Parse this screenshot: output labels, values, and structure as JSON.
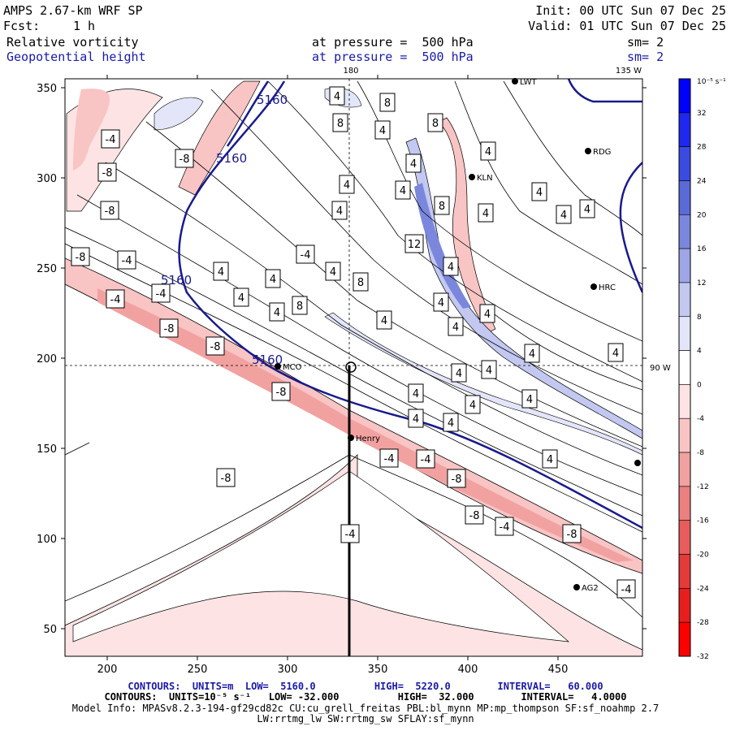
{
  "header": {
    "model_title": "AMPS 2.67-km WRF SP",
    "fcst_label": "Fcst:",
    "fcst_value": "1 h",
    "init": "Init: 00 UTC Sun 07 Dec 25",
    "valid": "Valid: 01 UTC Sun 07 Dec 25",
    "field1_name": "Relative vorticity",
    "field1_level": "at pressure =  500 hPa",
    "field1_sm": "sm= 2",
    "field2_name": "Geopotential height",
    "field2_level": "at pressure =  500 hPa",
    "field2_sm": "sm= 2"
  },
  "map": {
    "lon_labels": [
      "180",
      "135 W",
      "90 W"
    ],
    "x_ticks": [
      "200",
      "250",
      "300",
      "350",
      "400",
      "450"
    ],
    "y_ticks": [
      "350",
      "300",
      "250",
      "200",
      "150",
      "100",
      "50"
    ],
    "stations": [
      "LWT",
      "RDG",
      "KLN",
      "HRC",
      "MCO",
      "Henry",
      "AG2"
    ],
    "height_labels": [
      "5160",
      "5160",
      "5160",
      "5160"
    ],
    "vort_labels": [
      "-4",
      "-8",
      "-8",
      "-8",
      "-8",
      "-4",
      "-4",
      "-4",
      "-8",
      "-8",
      "-8",
      "-8",
      "-4",
      "-4",
      "-8",
      "-8",
      "-4",
      "-8",
      "-4",
      "-4",
      "-4",
      "4",
      "8",
      "8",
      "4",
      "8",
      "4",
      "4",
      "4",
      "4",
      "4",
      "4",
      "4",
      "4",
      "4",
      "4",
      "4",
      "12",
      "4",
      "8",
      "8",
      "4",
      "4",
      "4",
      "4",
      "4",
      "4",
      "4",
      "8",
      "4",
      "4",
      "4",
      "4",
      "4",
      "4",
      "4",
      "4",
      "4",
      "4"
    ]
  },
  "colorbar": {
    "unit": "10⁻⁵ s⁻¹",
    "labels": [
      "32",
      "28",
      "24",
      "20",
      "16",
      "12",
      "8",
      "4",
      "0",
      "-4",
      "-8",
      "-12",
      "-16",
      "-20",
      "-24",
      "-28",
      "-32"
    ],
    "colors": [
      "#0000ff",
      "#1e28ee",
      "#3a4ce0",
      "#5a6ad6",
      "#7b87dc",
      "#9ea6e6",
      "#c3c8f1",
      "#e3e5f9",
      "#ffffff",
      "#fde3e3",
      "#f8c4c4",
      "#f2a1a1",
      "#ec7f7f",
      "#e85c5c",
      "#e53a3a",
      "#e81e1e",
      "#ff0000"
    ]
  },
  "footer": {
    "line1": "CONTOURS:  UNITS=m  LOW=  5160.0          HIGH=  5220.0        INTERVAL=   60.000",
    "line2": "CONTOURS:  UNITS=10⁻⁵ s⁻¹   LOW= -32.000          HIGH=  32.000        INTERVAL=   4.0000",
    "line3": "Model Info: MPASv8.2.3-194-gf29cd82c CU:cu_grell_freitas PBL:bl_mynn MP:mp_thompson SF:sf_noahmp 2.7",
    "line4": "LW:rrtmg_lw SW:rrtmg_sw SFLAY:sf_mynn"
  }
}
